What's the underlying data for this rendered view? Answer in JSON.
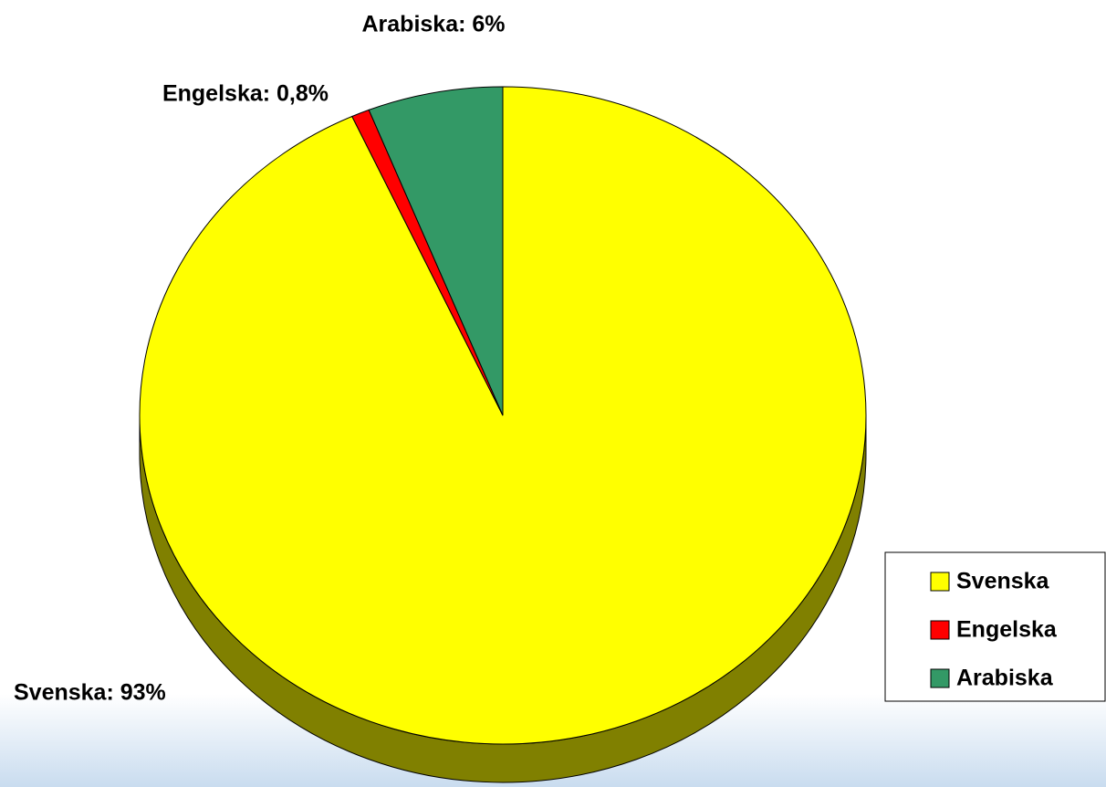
{
  "chart_data": {
    "type": "pie",
    "categories": [
      "Svenska",
      "Engelska",
      "Arabiska"
    ],
    "values": [
      93,
      0.8,
      6
    ],
    "value_labels": [
      "Svenska: 93%",
      "Engelska: 0,8%",
      "Arabiska: 6%"
    ],
    "colors": [
      "#ffff00",
      "#ff0000",
      "#339966"
    ],
    "legend": "right"
  }
}
